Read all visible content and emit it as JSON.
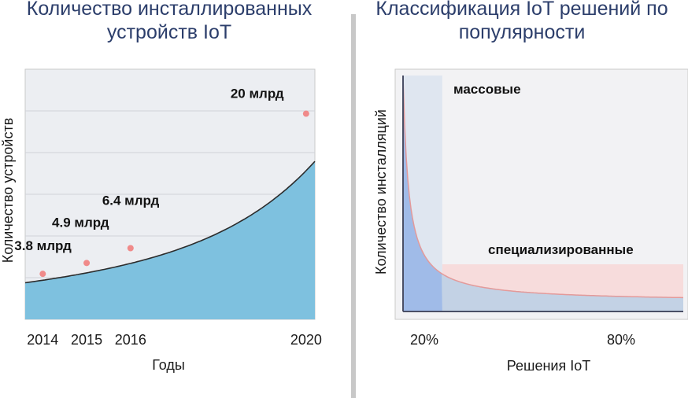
{
  "chart_data": [
    {
      "type": "area",
      "title": "Количество инсталлированных устройств IoT",
      "xlabel": "Годы",
      "ylabel": "Количество устройств",
      "x": [
        2014,
        2015,
        2016,
        2020
      ],
      "values": [
        3.8,
        4.9,
        6.4,
        20
      ],
      "data_labels": [
        "3.8 млрд",
        "4.9 млрд",
        "6.4 млрд",
        "20 млрд"
      ],
      "x_tick_labels": [
        "2014",
        "2015",
        "2016",
        "2020"
      ],
      "grid": true,
      "colors": {
        "fill": "#7ec1df",
        "line": "#2c2c2c",
        "marker": "#f08a8a",
        "plot_bg": "#eceef2"
      }
    },
    {
      "type": "area",
      "title": "Классификация IoT решений по популярности",
      "xlabel": "Решения IoT",
      "ylabel": "Количество инсталляций",
      "x_tick_labels": [
        "20%",
        "80%"
      ],
      "regions": [
        {
          "label": "массовые",
          "share": 0.2
        },
        {
          "label": "специализированные",
          "share": 0.8
        }
      ],
      "grid": false,
      "colors": {
        "head": "#9ab6e8",
        "tail_fill": "#bcd0e6",
        "tail_band": "#f7dcdc",
        "curve": "#e39a9a"
      }
    }
  ]
}
